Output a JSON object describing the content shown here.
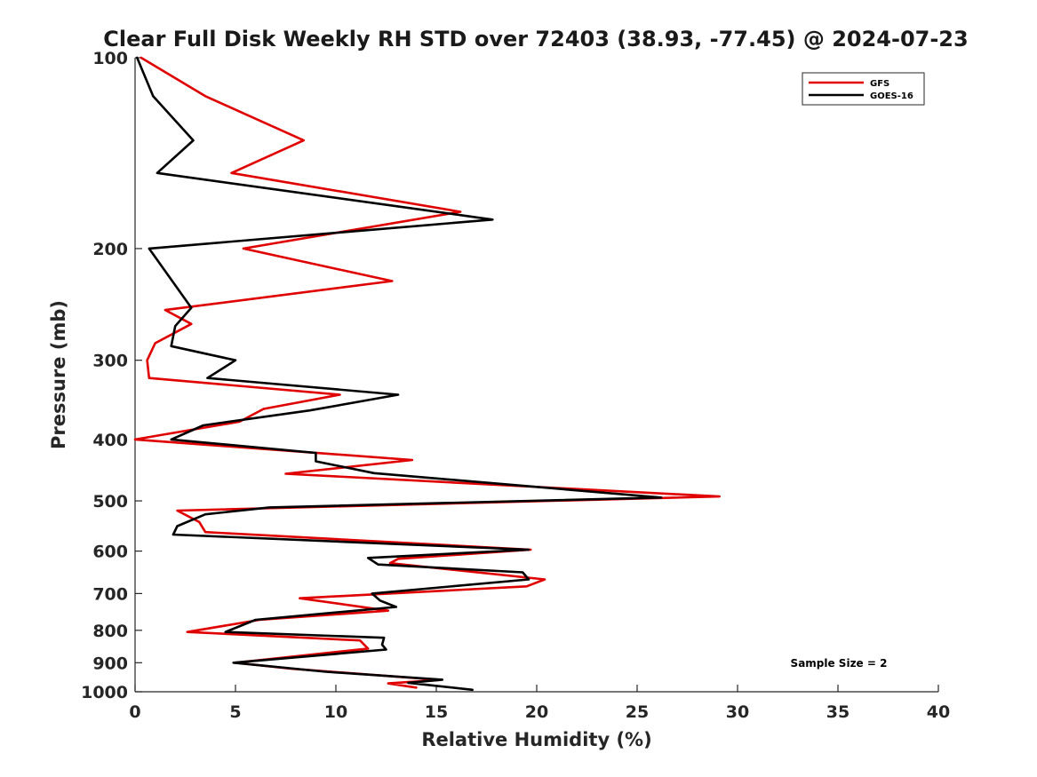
{
  "chart_data": {
    "type": "line",
    "title": "Clear Full Disk Weekly RH STD over 72403 (38.93, -77.45) @ 2024-07-23",
    "xlabel": "Relative Humidity (%)",
    "ylabel": "Pressure (mb)",
    "xlim": [
      0,
      40
    ],
    "ylim": [
      1000,
      100
    ],
    "yscale": "log",
    "reverse_y": true,
    "grid": false,
    "legend_position": "top-right",
    "x_ticks": [
      "0",
      "5",
      "10",
      "15",
      "20",
      "25",
      "30",
      "35",
      "40"
    ],
    "y_ticks": [
      "100",
      "200",
      "300",
      "400",
      "500",
      "600",
      "700",
      "800",
      "900",
      "1000"
    ],
    "annotation": "Sample Size = 2",
    "series": [
      {
        "name": "GFS",
        "color": "#e00000",
        "points": [
          [
            0.3,
            100
          ],
          [
            3.5,
            115
          ],
          [
            8.4,
            135
          ],
          [
            4.8,
            152
          ],
          [
            16.2,
            175
          ],
          [
            5.4,
            200
          ],
          [
            12.8,
            225
          ],
          [
            1.5,
            250
          ],
          [
            2.8,
            263
          ],
          [
            1.0,
            282
          ],
          [
            0.6,
            300
          ],
          [
            0.7,
            320
          ],
          [
            10.2,
            340
          ],
          [
            6.4,
            358
          ],
          [
            5.2,
            375
          ],
          [
            0.0,
            400
          ],
          [
            13.8,
            431
          ],
          [
            7.5,
            453
          ],
          [
            29.1,
            492
          ],
          [
            2.1,
            518
          ],
          [
            3.2,
            540
          ],
          [
            3.5,
            560
          ],
          [
            19.7,
            597
          ],
          [
            13.1,
            617
          ],
          [
            12.7,
            627
          ],
          [
            20.4,
            665
          ],
          [
            19.5,
            682
          ],
          [
            8.2,
            712
          ],
          [
            12.6,
            745
          ],
          [
            6.2,
            770
          ],
          [
            2.6,
            805
          ],
          [
            11.2,
            830
          ],
          [
            11.6,
            855
          ],
          [
            5.0,
            900
          ],
          [
            7.8,
            920
          ],
          [
            15.2,
            958
          ],
          [
            12.6,
            970
          ],
          [
            14.0,
            985
          ]
        ]
      },
      {
        "name": "GOES-16",
        "color": "#000000",
        "points": [
          [
            0.1,
            100
          ],
          [
            0.9,
            115
          ],
          [
            2.9,
            135
          ],
          [
            1.1,
            152
          ],
          [
            17.8,
            180
          ],
          [
            0.7,
            200
          ],
          [
            2.8,
            248
          ],
          [
            2.0,
            265
          ],
          [
            1.8,
            285
          ],
          [
            5.0,
            300
          ],
          [
            3.6,
            320
          ],
          [
            13.1,
            340
          ],
          [
            8.7,
            360
          ],
          [
            3.4,
            380
          ],
          [
            1.8,
            400
          ],
          [
            9.0,
            420
          ],
          [
            9.0,
            433
          ],
          [
            11.9,
            452
          ],
          [
            26.2,
            494
          ],
          [
            6.7,
            512
          ],
          [
            3.5,
            525
          ],
          [
            2.1,
            548
          ],
          [
            1.9,
            565
          ],
          [
            19.6,
            597
          ],
          [
            11.6,
            615
          ],
          [
            12.1,
            630
          ],
          [
            19.3,
            648
          ],
          [
            19.6,
            665
          ],
          [
            11.8,
            700
          ],
          [
            12.2,
            718
          ],
          [
            13.0,
            735
          ],
          [
            6.0,
            770
          ],
          [
            4.5,
            805
          ],
          [
            12.4,
            822
          ],
          [
            12.3,
            843
          ],
          [
            12.5,
            858
          ],
          [
            4.9,
            900
          ],
          [
            9.5,
            930
          ],
          [
            15.3,
            957
          ],
          [
            13.6,
            968
          ],
          [
            16.8,
            993
          ]
        ]
      }
    ]
  }
}
